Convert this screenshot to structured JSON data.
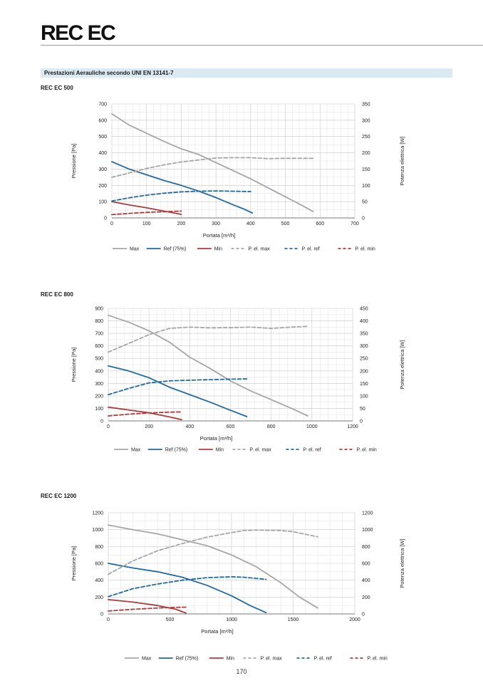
{
  "page": {
    "title": "REC EC",
    "section_title": "Prestazioni Aerauliche secondo UNI EN 13141-7",
    "page_number": "170"
  },
  "colors": {
    "max": "#a6a6a6",
    "ref": "#1f6aa5",
    "min": "#b23a3a",
    "grid": "#dcdcdc",
    "section_bar": "#dbeaf2"
  },
  "chart_data": [
    {
      "type": "line",
      "title": "REC EC 500",
      "xlabel": "Portata [m³/h]",
      "ylabel": "Pressione [Pa]",
      "y2label": "Potenza elettrica [W]",
      "xlim": [
        0,
        700
      ],
      "ylim": [
        0,
        700
      ],
      "y2lim": [
        0,
        350
      ],
      "xticks": [
        0,
        100,
        200,
        300,
        400,
        500,
        600,
        700
      ],
      "yticks": [
        0,
        100,
        200,
        300,
        400,
        500,
        600,
        700
      ],
      "y2ticks": [
        0,
        50,
        100,
        150,
        200,
        250,
        300,
        350
      ],
      "legend": [
        "Max",
        "Ref (75%)",
        "Min",
        "P. el. max",
        "P. el. ref",
        "P. el. min"
      ],
      "series": [
        {
          "name": "Max",
          "axis": "left",
          "style": "solid",
          "color": "max",
          "points": [
            [
              0,
              640
            ],
            [
              50,
              570
            ],
            [
              100,
              520
            ],
            [
              150,
              470
            ],
            [
              200,
              425
            ],
            [
              250,
              390
            ],
            [
              300,
              340
            ],
            [
              350,
              290
            ],
            [
              400,
              240
            ],
            [
              450,
              185
            ],
            [
              500,
              130
            ],
            [
              550,
              75
            ],
            [
              580,
              40
            ]
          ]
        },
        {
          "name": "Ref (75%)",
          "axis": "left",
          "style": "solid",
          "color": "ref",
          "points": [
            [
              0,
              345
            ],
            [
              50,
              300
            ],
            [
              100,
              265
            ],
            [
              150,
              230
            ],
            [
              200,
              200
            ],
            [
              250,
              165
            ],
            [
              300,
              125
            ],
            [
              350,
              80
            ],
            [
              380,
              55
            ],
            [
              405,
              30
            ]
          ]
        },
        {
          "name": "Min",
          "axis": "left",
          "style": "solid",
          "color": "min",
          "points": [
            [
              0,
              100
            ],
            [
              50,
              80
            ],
            [
              100,
              62
            ],
            [
              150,
              42
            ],
            [
              200,
              22
            ]
          ]
        },
        {
          "name": "P. el. max",
          "axis": "right",
          "style": "dashed",
          "color": "max",
          "points": [
            [
              0,
              125
            ],
            [
              50,
              138
            ],
            [
              100,
              152
            ],
            [
              150,
              163
            ],
            [
              200,
              172
            ],
            [
              250,
              178
            ],
            [
              300,
              184
            ],
            [
              350,
              185
            ],
            [
              400,
              185
            ],
            [
              450,
              182
            ],
            [
              500,
              183
            ],
            [
              580,
              183
            ]
          ]
        },
        {
          "name": "P. el. ref",
          "axis": "right",
          "style": "dashed",
          "color": "ref",
          "points": [
            [
              0,
              52
            ],
            [
              50,
              62
            ],
            [
              100,
              70
            ],
            [
              150,
              76
            ],
            [
              200,
              80
            ],
            [
              250,
              82
            ],
            [
              300,
              83
            ],
            [
              350,
              82
            ],
            [
              400,
              81
            ]
          ]
        },
        {
          "name": "P. el. min",
          "axis": "right",
          "style": "dashed",
          "color": "min",
          "points": [
            [
              0,
              10
            ],
            [
              50,
              14
            ],
            [
              100,
              17
            ],
            [
              150,
              19
            ],
            [
              200,
              21
            ]
          ]
        }
      ]
    },
    {
      "type": "line",
      "title": "REC EC 800",
      "xlabel": "Portata [m³/h]",
      "ylabel": "Pressione [Pa]",
      "y2label": "Potenza elettrica [W]",
      "xlim": [
        0,
        1200
      ],
      "ylim": [
        0,
        900
      ],
      "y2lim": [
        0,
        450
      ],
      "xticks": [
        0,
        200,
        400,
        600,
        800,
        1000,
        1200
      ],
      "yticks": [
        0,
        100,
        200,
        300,
        400,
        500,
        600,
        700,
        800,
        900
      ],
      "y2ticks": [
        0,
        50,
        100,
        150,
        200,
        250,
        300,
        350,
        400,
        450
      ],
      "legend": [
        "Max",
        "Ref (75%)",
        "Min",
        "P. el. max",
        "P. el. ref",
        "P. el. min"
      ],
      "series": [
        {
          "name": "Max",
          "axis": "left",
          "style": "solid",
          "color": "max",
          "points": [
            [
              0,
              845
            ],
            [
              100,
              790
            ],
            [
              200,
              720
            ],
            [
              300,
              630
            ],
            [
              400,
              510
            ],
            [
              500,
              420
            ],
            [
              600,
              320
            ],
            [
              700,
              240
            ],
            [
              800,
              170
            ],
            [
              900,
              100
            ],
            [
              980,
              40
            ]
          ]
        },
        {
          "name": "Ref (75%)",
          "axis": "left",
          "style": "solid",
          "color": "ref",
          "points": [
            [
              0,
              440
            ],
            [
              100,
              400
            ],
            [
              200,
              345
            ],
            [
              300,
              270
            ],
            [
              400,
              210
            ],
            [
              500,
              150
            ],
            [
              600,
              85
            ],
            [
              680,
              35
            ]
          ]
        },
        {
          "name": "Min",
          "axis": "left",
          "style": "solid",
          "color": "min",
          "points": [
            [
              0,
              110
            ],
            [
              100,
              88
            ],
            [
              200,
              65
            ],
            [
              300,
              32
            ],
            [
              360,
              10
            ]
          ]
        },
        {
          "name": "P. el. max",
          "axis": "right",
          "style": "dashed",
          "color": "max",
          "points": [
            [
              0,
              275
            ],
            [
              100,
              310
            ],
            [
              200,
              345
            ],
            [
              300,
              370
            ],
            [
              400,
              375
            ],
            [
              500,
              372
            ],
            [
              600,
              373
            ],
            [
              700,
              375
            ],
            [
              800,
              370
            ],
            [
              900,
              375
            ],
            [
              980,
              378
            ]
          ]
        },
        {
          "name": "P. el. ref",
          "axis": "right",
          "style": "dashed",
          "color": "ref",
          "points": [
            [
              0,
              105
            ],
            [
              100,
              130
            ],
            [
              200,
              152
            ],
            [
              300,
              160
            ],
            [
              400,
              163
            ],
            [
              500,
              165
            ],
            [
              600,
              167
            ],
            [
              680,
              168
            ]
          ]
        },
        {
          "name": "P. el. min",
          "axis": "right",
          "style": "dashed",
          "color": "min",
          "points": [
            [
              0,
              20
            ],
            [
              100,
              27
            ],
            [
              200,
              32
            ],
            [
              300,
              35
            ],
            [
              360,
              36
            ]
          ]
        }
      ]
    },
    {
      "type": "line",
      "title": "REC EC 1200",
      "xlabel": "Portata [m³/h]",
      "ylabel": "Pressione [Pa]",
      "y2label": "Potenza elettrica [W]",
      "xlim": [
        0,
        2000
      ],
      "ylim": [
        0,
        1200
      ],
      "y2lim": [
        0,
        1200
      ],
      "xticks": [
        0,
        500,
        1000,
        1500,
        2000
      ],
      "yticks": [
        0,
        200,
        400,
        600,
        800,
        1000,
        1200
      ],
      "y2ticks": [
        0,
        200,
        400,
        600,
        800,
        1000,
        1200
      ],
      "legend": [
        "Max",
        "Ref (75%)",
        "Min",
        "P. el. max",
        "P. el. ref",
        "P. el. min"
      ],
      "series": [
        {
          "name": "Max",
          "axis": "left",
          "style": "solid",
          "color": "max",
          "points": [
            [
              0,
              1055
            ],
            [
              200,
              1000
            ],
            [
              400,
              950
            ],
            [
              600,
              880
            ],
            [
              800,
              810
            ],
            [
              1000,
              700
            ],
            [
              1200,
              560
            ],
            [
              1400,
              370
            ],
            [
              1550,
              200
            ],
            [
              1700,
              70
            ]
          ]
        },
        {
          "name": "Ref (75%)",
          "axis": "left",
          "style": "solid",
          "color": "ref",
          "points": [
            [
              0,
              600
            ],
            [
              200,
              545
            ],
            [
              400,
              500
            ],
            [
              600,
              435
            ],
            [
              800,
              340
            ],
            [
              1000,
              215
            ],
            [
              1150,
              100
            ],
            [
              1280,
              15
            ]
          ]
        },
        {
          "name": "Min",
          "axis": "left",
          "style": "solid",
          "color": "min",
          "points": [
            [
              0,
              170
            ],
            [
              200,
              140
            ],
            [
              400,
              100
            ],
            [
              550,
              55
            ],
            [
              630,
              10
            ]
          ]
        },
        {
          "name": "P. el. max",
          "axis": "right",
          "style": "dashed",
          "color": "max",
          "points": [
            [
              0,
              470
            ],
            [
              200,
              630
            ],
            [
              400,
              750
            ],
            [
              600,
              835
            ],
            [
              800,
              910
            ],
            [
              1000,
              965
            ],
            [
              1100,
              990
            ],
            [
              1200,
              995
            ],
            [
              1400,
              990
            ],
            [
              1500,
              975
            ],
            [
              1700,
              915
            ]
          ]
        },
        {
          "name": "P. el. ref",
          "axis": "right",
          "style": "dashed",
          "color": "ref",
          "points": [
            [
              0,
              205
            ],
            [
              200,
              300
            ],
            [
              400,
              355
            ],
            [
              600,
              400
            ],
            [
              800,
              430
            ],
            [
              1000,
              440
            ],
            [
              1100,
              435
            ],
            [
              1280,
              410
            ]
          ]
        },
        {
          "name": "P. el. min",
          "axis": "right",
          "style": "dashed",
          "color": "min",
          "points": [
            [
              0,
              35
            ],
            [
              200,
              55
            ],
            [
              400,
              70
            ],
            [
              550,
              78
            ],
            [
              630,
              80
            ]
          ]
        }
      ]
    }
  ]
}
